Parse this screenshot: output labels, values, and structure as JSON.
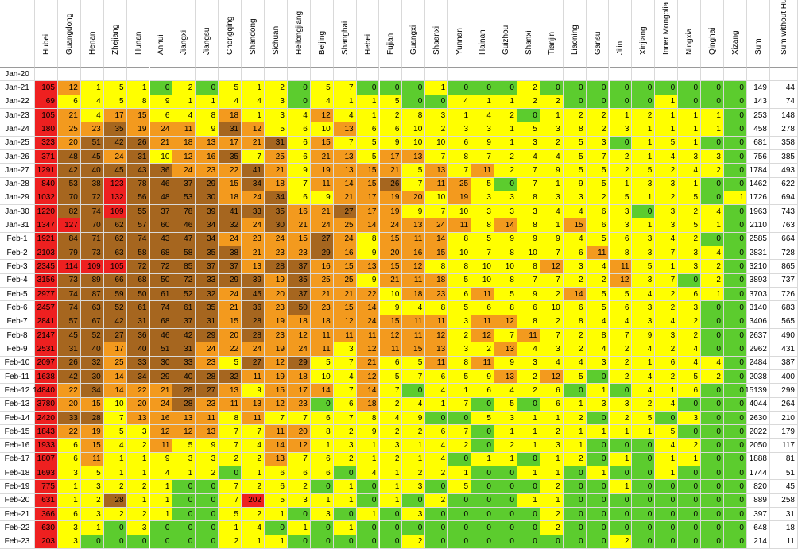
{
  "chart_data": {
    "type": "heatmap",
    "title": "",
    "columns": [
      "Hubei",
      "Guangdong",
      "Henan",
      "Zhejiang",
      "Hunan",
      "Anhui",
      "Jiangxi",
      "Jiangsu",
      "Chongqing",
      "Shandong",
      "Sichuan",
      "Heilongjiang",
      "Beijing",
      "Shanghai",
      "Hebei",
      "Fujian",
      "Guangxi",
      "Shaanxi",
      "Yunnan",
      "Hainan",
      "Guizhou",
      "Shanxi",
      "Tianjin",
      "Liaoning",
      "Gansu",
      "Jilin",
      "Xinjiang",
      "Inner Mongolia",
      "Ningxia",
      "Qinghai",
      "Xizang",
      "Sum",
      "Sum without Hubei"
    ],
    "rows": [
      "Jan-20",
      "Jan-21",
      "Jan-22",
      "Jan-23",
      "Jan-24",
      "Jan-25",
      "Jan-26",
      "Jan-27",
      "Jan-28",
      "Jan-29",
      "Jan-30",
      "Jan-31",
      "Feb-1",
      "Feb-2",
      "Feb-3",
      "Feb-4",
      "Feb-5",
      "Feb-6",
      "Feb-7",
      "Feb-8",
      "Feb-9",
      "Feb-10",
      "Feb-11",
      "Feb-12",
      "Feb-13",
      "Feb-14",
      "Feb-15",
      "Feb-16",
      "Feb-17",
      "Feb-18",
      "Feb-19",
      "Feb-20",
      "Feb-21",
      "Feb-22",
      "Feb-23"
    ],
    "values": [
      [
        null,
        null,
        null,
        null,
        null,
        null,
        null,
        null,
        null,
        null,
        null,
        null,
        null,
        null,
        null,
        null,
        null,
        null,
        null,
        null,
        null,
        null,
        null,
        null,
        null,
        null,
        null,
        null,
        null,
        null,
        null,
        null,
        null
      ],
      [
        105,
        12,
        1,
        5,
        1,
        0,
        2,
        0,
        5,
        1,
        2,
        0,
        5,
        7,
        0,
        0,
        0,
        1,
        0,
        0,
        0,
        2,
        0,
        0,
        0,
        0,
        0,
        0,
        0,
        0,
        0,
        149,
        44
      ],
      [
        69,
        6,
        4,
        5,
        8,
        9,
        1,
        1,
        4,
        4,
        3,
        0,
        4,
        1,
        1,
        5,
        0,
        0,
        4,
        1,
        1,
        2,
        2,
        0,
        0,
        0,
        0,
        1,
        0,
        0,
        0,
        143,
        74
      ],
      [
        105,
        21,
        4,
        17,
        15,
        6,
        4,
        8,
        18,
        1,
        3,
        4,
        12,
        4,
        1,
        2,
        8,
        3,
        1,
        4,
        2,
        0,
        1,
        2,
        2,
        1,
        2,
        1,
        1,
        1,
        0,
        253,
        148
      ],
      [
        180,
        25,
        23,
        35,
        19,
        24,
        11,
        9,
        31,
        12,
        5,
        6,
        10,
        13,
        6,
        6,
        10,
        2,
        3,
        3,
        1,
        5,
        3,
        8,
        2,
        3,
        1,
        1,
        1,
        1,
        0,
        458,
        278
      ],
      [
        323,
        20,
        51,
        42,
        26,
        21,
        18,
        13,
        17,
        21,
        31,
        6,
        15,
        7,
        5,
        9,
        10,
        10,
        6,
        9,
        1,
        3,
        2,
        5,
        3,
        0,
        1,
        5,
        1,
        0,
        0,
        681,
        358
      ],
      [
        371,
        48,
        45,
        24,
        31,
        10,
        12,
        16,
        35,
        7,
        25,
        6,
        21,
        13,
        5,
        17,
        13,
        7,
        8,
        7,
        2,
        4,
        4,
        5,
        7,
        2,
        1,
        4,
        3,
        3,
        0,
        756,
        385
      ],
      [
        1291,
        42,
        40,
        45,
        43,
        36,
        24,
        23,
        22,
        41,
        21,
        9,
        19,
        13,
        15,
        21,
        5,
        13,
        7,
        11,
        2,
        7,
        9,
        5,
        5,
        2,
        5,
        2,
        4,
        2,
        0,
        1784,
        493
      ],
      [
        840,
        53,
        38,
        123,
        78,
        46,
        37,
        29,
        15,
        34,
        18,
        7,
        11,
        14,
        15,
        26,
        7,
        11,
        25,
        5,
        0,
        7,
        1,
        9,
        5,
        1,
        3,
        3,
        1,
        0,
        0,
        1462,
        622
      ],
      [
        1032,
        70,
        72,
        132,
        56,
        48,
        53,
        30,
        18,
        24,
        34,
        6,
        9,
        21,
        17,
        19,
        20,
        10,
        19,
        3,
        3,
        8,
        3,
        3,
        2,
        5,
        1,
        2,
        5,
        0,
        1,
        1726,
        694
      ],
      [
        1220,
        82,
        74,
        109,
        55,
        37,
        78,
        39,
        41,
        33,
        35,
        16,
        21,
        27,
        17,
        19,
        9,
        7,
        10,
        3,
        3,
        3,
        4,
        4,
        6,
        3,
        0,
        3,
        2,
        4,
        0,
        1963,
        743
      ],
      [
        1347,
        127,
        70,
        62,
        57,
        60,
        46,
        34,
        32,
        24,
        30,
        21,
        24,
        25,
        14,
        24,
        13,
        24,
        11,
        8,
        14,
        8,
        1,
        15,
        6,
        3,
        1,
        3,
        5,
        1,
        0,
        2110,
        763
      ],
      [
        1921,
        84,
        71,
        62,
        74,
        43,
        47,
        34,
        24,
        23,
        24,
        15,
        27,
        24,
        8,
        15,
        11,
        14,
        8,
        5,
        9,
        9,
        9,
        4,
        5,
        6,
        3,
        4,
        2,
        0,
        0,
        2585,
        664
      ],
      [
        2103,
        79,
        73,
        63,
        58,
        68,
        58,
        35,
        38,
        21,
        23,
        23,
        29,
        16,
        9,
        20,
        16,
        15,
        10,
        7,
        8,
        10,
        7,
        6,
        11,
        8,
        3,
        7,
        3,
        4,
        0,
        2831,
        728
      ],
      [
        2345,
        114,
        109,
        105,
        72,
        72,
        85,
        37,
        37,
        13,
        28,
        37,
        16,
        15,
        13,
        15,
        12,
        8,
        8,
        10,
        10,
        8,
        12,
        3,
        4,
        11,
        5,
        1,
        3,
        2,
        0,
        3210,
        865
      ],
      [
        3156,
        73,
        89,
        66,
        68,
        50,
        72,
        33,
        29,
        39,
        19,
        35,
        25,
        25,
        9,
        21,
        11,
        18,
        5,
        10,
        8,
        7,
        7,
        2,
        2,
        12,
        3,
        7,
        0,
        2,
        0,
        3893,
        737
      ],
      [
        2977,
        74,
        87,
        59,
        50,
        61,
        52,
        32,
        24,
        45,
        20,
        37,
        21,
        21,
        22,
        10,
        18,
        23,
        6,
        11,
        5,
        9,
        2,
        14,
        5,
        5,
        4,
        2,
        6,
        1,
        0,
        3703,
        726
      ],
      [
        2457,
        74,
        63,
        52,
        61,
        74,
        61,
        35,
        21,
        36,
        23,
        50,
        23,
        15,
        14,
        9,
        4,
        8,
        5,
        6,
        8,
        6,
        10,
        6,
        5,
        6,
        3,
        2,
        3,
        0,
        0,
        3140,
        683
      ],
      [
        2841,
        57,
        67,
        42,
        31,
        68,
        37,
        31,
        15,
        28,
        19,
        18,
        18,
        12,
        24,
        15,
        11,
        11,
        3,
        11,
        12,
        8,
        2,
        8,
        4,
        4,
        3,
        4,
        2,
        0,
        0,
        3406,
        565
      ],
      [
        2147,
        45,
        52,
        27,
        36,
        46,
        42,
        29,
        20,
        28,
        23,
        12,
        11,
        11,
        11,
        12,
        11,
        12,
        2,
        12,
        7,
        11,
        7,
        2,
        8,
        7,
        9,
        3,
        2,
        0,
        0,
        2637,
        490
      ],
      [
        2531,
        31,
        40,
        17,
        40,
        51,
        31,
        24,
        22,
        24,
        19,
        24,
        11,
        3,
        12,
        11,
        15,
        13,
        3,
        2,
        13,
        4,
        3,
        2,
        4,
        2,
        4,
        2,
        4,
        0,
        0,
        2962,
        431
      ],
      [
        2097,
        26,
        32,
        25,
        33,
        30,
        33,
        23,
        5,
        27,
        12,
        29,
        5,
        7,
        21,
        6,
        5,
        11,
        8,
        11,
        9,
        3,
        4,
        4,
        3,
        2,
        1,
        6,
        4,
        4,
        0,
        2484,
        387
      ],
      [
        1638,
        42,
        30,
        14,
        34,
        29,
        40,
        28,
        32,
        11,
        19,
        18,
        10,
        4,
        12,
        5,
        7,
        6,
        5,
        9,
        13,
        2,
        12,
        5,
        0,
        2,
        4,
        2,
        5,
        2,
        0,
        2038,
        400
      ],
      [
        14840,
        22,
        34,
        14,
        22,
        21,
        28,
        27,
        13,
        9,
        15,
        17,
        14,
        7,
        14,
        7,
        0,
        4,
        1,
        6,
        4,
        2,
        6,
        0,
        1,
        0,
        4,
        1,
        6,
        0,
        0,
        15139,
        299
      ],
      [
        3780,
        20,
        15,
        10,
        20,
        24,
        28,
        23,
        11,
        13,
        12,
        23,
        0,
        6,
        18,
        2,
        4,
        1,
        7,
        0,
        5,
        0,
        6,
        1,
        3,
        3,
        2,
        4,
        0,
        0,
        0,
        4044,
        264
      ],
      [
        2420,
        33,
        28,
        7,
        13,
        16,
        13,
        11,
        8,
        11,
        7,
        7,
        6,
        7,
        8,
        4,
        9,
        0,
        0,
        5,
        3,
        1,
        1,
        2,
        0,
        2,
        5,
        0,
        3,
        0,
        0,
        2630,
        210
      ],
      [
        1843,
        22,
        19,
        5,
        3,
        12,
        12,
        13,
        7,
        7,
        11,
        20,
        8,
        2,
        9,
        2,
        2,
        6,
        7,
        0,
        1,
        1,
        2,
        1,
        1,
        1,
        1,
        5,
        0,
        0,
        0,
        2022,
        179
      ],
      [
        1933,
        6,
        15,
        4,
        2,
        11,
        5,
        9,
        7,
        4,
        14,
        12,
        1,
        3,
        1,
        3,
        1,
        4,
        2,
        0,
        2,
        1,
        3,
        1,
        0,
        0,
        0,
        4,
        2,
        0,
        0,
        2050,
        117
      ],
      [
        1807,
        6,
        11,
        1,
        1,
        9,
        3,
        3,
        2,
        2,
        13,
        7,
        6,
        2,
        1,
        2,
        1,
        4,
        0,
        1,
        1,
        0,
        1,
        2,
        0,
        1,
        0,
        1,
        1,
        0,
        0,
        1888,
        81
      ],
      [
        1693,
        3,
        5,
        1,
        1,
        4,
        1,
        2,
        0,
        1,
        6,
        6,
        6,
        0,
        4,
        1,
        2,
        2,
        1,
        0,
        0,
        1,
        1,
        0,
        1,
        0,
        0,
        1,
        0,
        0,
        0,
        1744,
        51
      ],
      [
        775,
        1,
        3,
        2,
        2,
        1,
        0,
        0,
        7,
        2,
        6,
        2,
        0,
        1,
        0,
        1,
        3,
        0,
        5,
        0,
        0,
        0,
        2,
        0,
        0,
        1,
        0,
        0,
        0,
        0,
        0,
        820,
        45
      ],
      [
        631,
        1,
        2,
        28,
        1,
        1,
        0,
        0,
        7,
        202,
        5,
        3,
        1,
        1,
        0,
        1,
        0,
        2,
        0,
        0,
        0,
        1,
        1,
        0,
        0,
        0,
        0,
        0,
        0,
        0,
        0,
        889,
        258
      ],
      [
        366,
        6,
        3,
        2,
        2,
        1,
        0,
        0,
        5,
        2,
        1,
        0,
        3,
        0,
        1,
        0,
        3,
        0,
        0,
        0,
        0,
        0,
        2,
        0,
        0,
        0,
        0,
        0,
        0,
        0,
        0,
        397,
        31
      ],
      [
        630,
        3,
        1,
        0,
        3,
        0,
        0,
        0,
        1,
        4,
        0,
        1,
        0,
        1,
        0,
        0,
        0,
        0,
        0,
        0,
        0,
        0,
        2,
        0,
        0,
        0,
        0,
        0,
        0,
        0,
        0,
        648,
        18
      ],
      [
        203,
        3,
        0,
        0,
        0,
        0,
        0,
        0,
        2,
        1,
        1,
        0,
        0,
        0,
        0,
        0,
        2,
        0,
        0,
        0,
        0,
        0,
        0,
        0,
        0,
        2,
        0,
        0,
        0,
        0,
        0,
        214,
        11
      ]
    ],
    "color_scale": {
      "zero": "#5ccc2e",
      "low": "#ffff00",
      "mid": "#f39a1e",
      "high": "#a6661f",
      "max": "#ee2020"
    },
    "grid": true
  }
}
